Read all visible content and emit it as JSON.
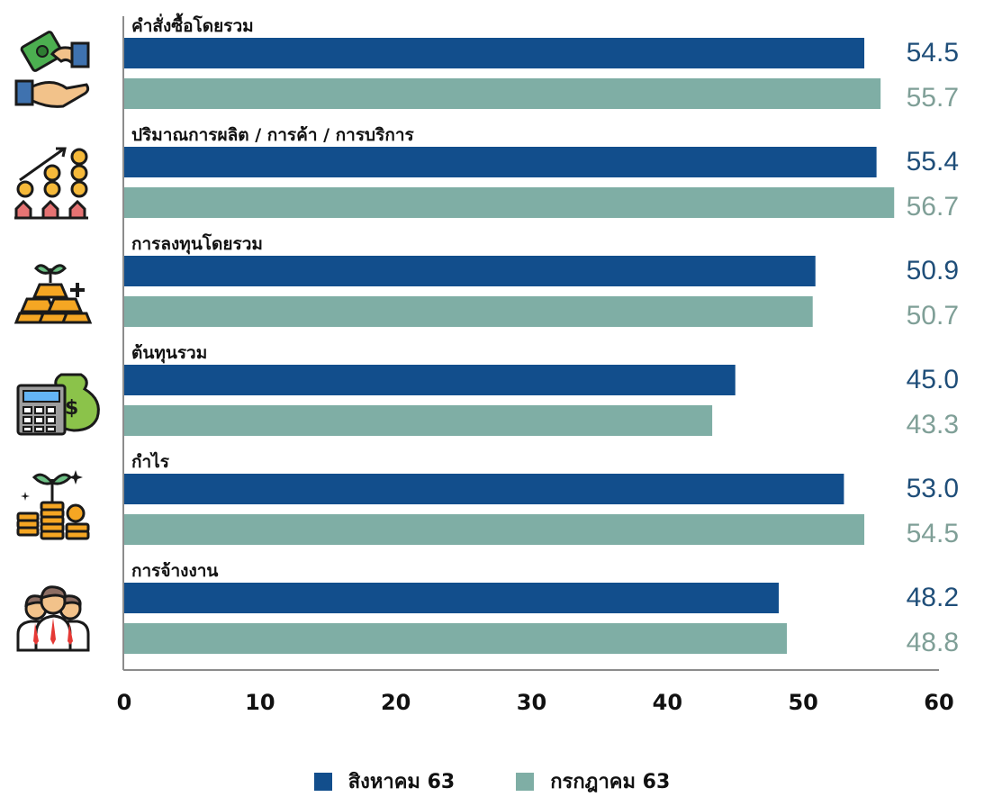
{
  "chart_data": {
    "type": "bar",
    "orientation": "horizontal",
    "categories": [
      "คำสั่งซื้อโดยรวม",
      "ปริมาณการผลิต / การค้า / การบริการ",
      "การลงทุนโดยรวม",
      "ต้นทุนรวม",
      "กำไร",
      "การจ้างงาน"
    ],
    "category_icons": [
      "handshake-money-icon",
      "growth-coins-icon",
      "gold-investment-icon",
      "calculator-moneybag-icon",
      "coin-plant-icon",
      "employees-icon"
    ],
    "series": [
      {
        "name": "สิงหาคม 63",
        "color": "#124E8C",
        "label_color": "#1F4E79",
        "values": [
          54.5,
          55.4,
          50.9,
          45.0,
          53.0,
          48.2
        ]
      },
      {
        "name": "กรกฎาคม 63",
        "color": "#7FAEA5",
        "label_color": "#7F9F97",
        "values": [
          55.7,
          56.7,
          50.7,
          43.3,
          54.5,
          48.8
        ]
      }
    ],
    "value_labels": [
      [
        "54.5",
        "55.4",
        "50.9",
        "45.0",
        "53.0",
        "48.2"
      ],
      [
        "55.7",
        "56.7",
        "50.7",
        "43.3",
        "54.5",
        "48.8"
      ]
    ],
    "xlim": [
      0,
      60
    ],
    "xticks": [
      "0",
      "10",
      "20",
      "30",
      "40",
      "50",
      "60"
    ],
    "xtick_values": [
      0,
      10,
      20,
      30,
      40,
      50,
      60
    ],
    "legend_position": "bottom",
    "grid": false
  }
}
